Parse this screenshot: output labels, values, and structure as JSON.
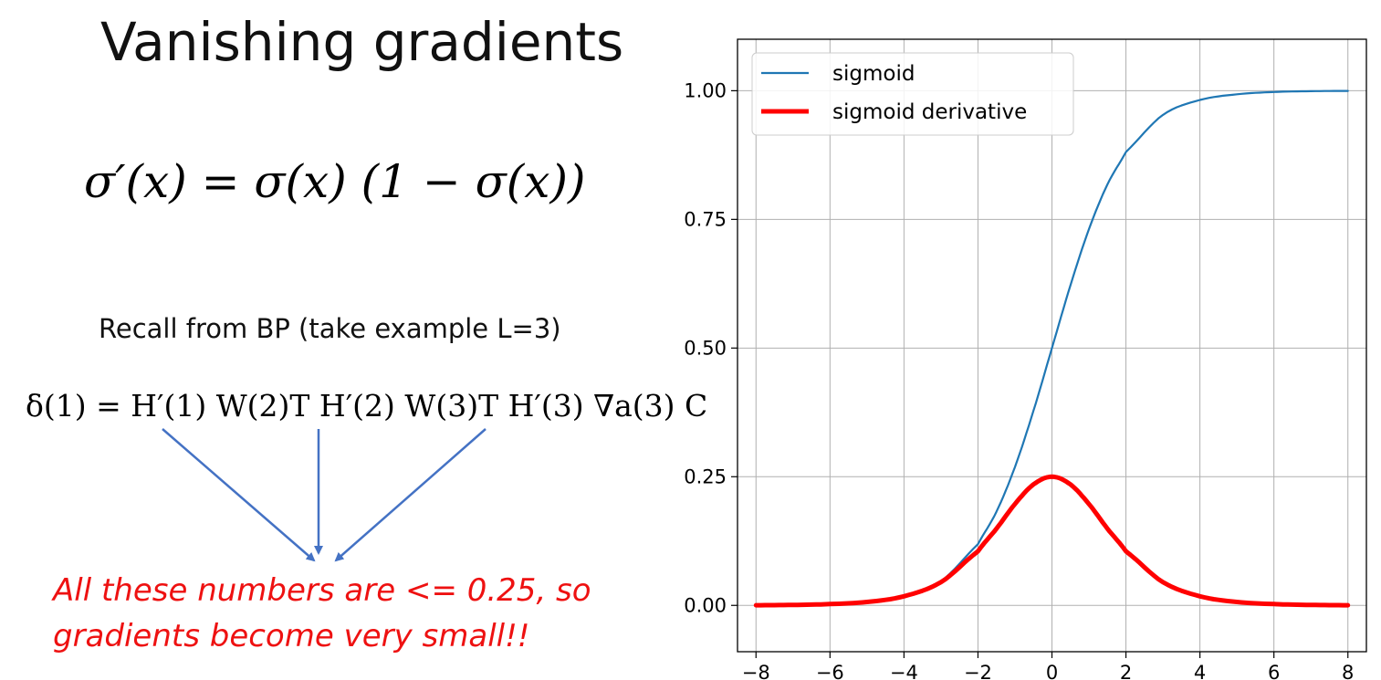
{
  "slide": {
    "title": "Vanishing gradients",
    "formula_main": "σ′(x) = σ(x) (1 − σ(x))",
    "recall_text": "Recall from BP (take example L=3)",
    "bp_formula": "δ(1) = H′(1) W(2)T H′(2) W(3)T H′(3) ∇a(3) C",
    "conclusion_line1": "All these numbers are <= 0.25, so",
    "conclusion_line2": "gradients become very small!!",
    "conclusion_color": "#ee1111",
    "arrow_color": "#4472c4"
  },
  "chart_data": {
    "type": "line",
    "title": "",
    "xlabel": "",
    "ylabel": "",
    "xlim": [
      -8.5,
      8.5
    ],
    "ylim": [
      -0.09,
      1.1
    ],
    "xticks": [
      -8,
      -6,
      -4,
      -2,
      0,
      2,
      4,
      6,
      8
    ],
    "xtick_labels": [
      "−8",
      "−6",
      "−4",
      "−2",
      "0",
      "2",
      "4",
      "6",
      "8"
    ],
    "yticks": [
      0.0,
      0.25,
      0.5,
      0.75,
      1.0
    ],
    "ytick_labels": [
      "0.00",
      "0.25",
      "0.50",
      "0.75",
      "1.00"
    ],
    "grid": true,
    "legend_position": "top-left",
    "x": [
      -8,
      -7,
      -6,
      -5,
      -4,
      -3,
      -2,
      -1.5,
      -1,
      -0.5,
      0,
      0.5,
      1,
      1.5,
      2,
      3,
      4,
      5,
      6,
      7,
      8
    ],
    "series": [
      {
        "name": "sigmoid",
        "color": "#1f77b4",
        "values": [
          0.0003,
          0.0009,
          0.0025,
          0.0067,
          0.018,
          0.047,
          0.119,
          0.182,
          0.269,
          0.378,
          0.5,
          0.622,
          0.731,
          0.818,
          0.881,
          0.953,
          0.982,
          0.993,
          0.9975,
          0.9991,
          0.9997
        ]
      },
      {
        "name": "sigmoid derivative",
        "color": "#ff0000",
        "values": [
          0.0003,
          0.0009,
          0.0025,
          0.0066,
          0.0177,
          0.0452,
          0.105,
          0.149,
          0.197,
          0.235,
          0.25,
          0.235,
          0.197,
          0.149,
          0.105,
          0.0452,
          0.0177,
          0.0066,
          0.0025,
          0.0009,
          0.0003
        ]
      }
    ]
  }
}
